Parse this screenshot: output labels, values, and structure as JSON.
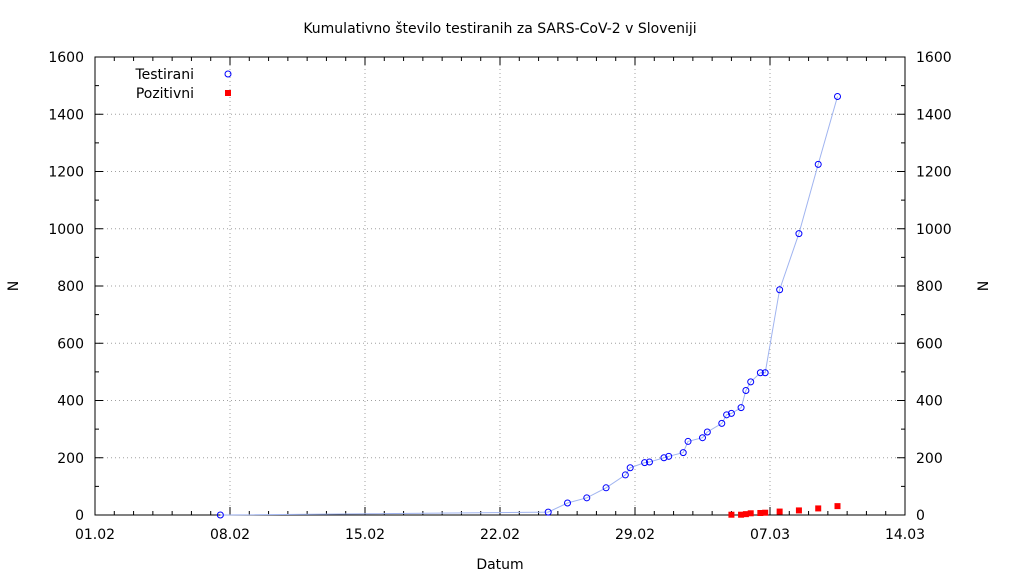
{
  "chart_data": {
    "type": "scatter",
    "title": "Kumulativno število testiranih za SARS-CoV-2 v Sloveniji",
    "xlabel": "Datum",
    "ylabel": "N",
    "y2label": "N",
    "xlim": [
      "2020-02-01",
      "2020-03-14"
    ],
    "ylim": [
      0,
      1600
    ],
    "x_ticks": [
      "01.02",
      "08.02",
      "15.02",
      "22.02",
      "29.02",
      "07.03",
      "14.03"
    ],
    "x_tick_dates": [
      "2020-02-01",
      "2020-02-08",
      "2020-02-15",
      "2020-02-22",
      "2020-02-29",
      "2020-03-07",
      "2020-03-14"
    ],
    "y_ticks": [
      0,
      200,
      400,
      600,
      800,
      1000,
      1200,
      1400,
      1600
    ],
    "grid": true,
    "legend_position": "top-left",
    "series": [
      {
        "name": "Testirani",
        "marker": "open-circle",
        "color": "#0000ff",
        "line_color": "#a0b4f0",
        "points": [
          {
            "x": "2020-02-07T12:00",
            "y": 0
          },
          {
            "x": "2020-02-24T12:00",
            "y": 10
          },
          {
            "x": "2020-02-25T12:00",
            "y": 42
          },
          {
            "x": "2020-02-26T12:00",
            "y": 60
          },
          {
            "x": "2020-02-27T12:00",
            "y": 95
          },
          {
            "x": "2020-02-28T12:00",
            "y": 140
          },
          {
            "x": "2020-02-28T18:00",
            "y": 165
          },
          {
            "x": "2020-02-29T12:00",
            "y": 183
          },
          {
            "x": "2020-02-29T18:00",
            "y": 185
          },
          {
            "x": "2020-03-01T12:00",
            "y": 200
          },
          {
            "x": "2020-03-01T18:00",
            "y": 205
          },
          {
            "x": "2020-03-02T12:00",
            "y": 218
          },
          {
            "x": "2020-03-02T18:00",
            "y": 257
          },
          {
            "x": "2020-03-03T12:00",
            "y": 270
          },
          {
            "x": "2020-03-03T18:00",
            "y": 290
          },
          {
            "x": "2020-03-04T12:00",
            "y": 320
          },
          {
            "x": "2020-03-04T18:00",
            "y": 350
          },
          {
            "x": "2020-03-05T00:00",
            "y": 355
          },
          {
            "x": "2020-03-05T12:00",
            "y": 375
          },
          {
            "x": "2020-03-05T18:00",
            "y": 435
          },
          {
            "x": "2020-03-06T00:00",
            "y": 465
          },
          {
            "x": "2020-03-06T12:00",
            "y": 497
          },
          {
            "x": "2020-03-06T18:00",
            "y": 497
          },
          {
            "x": "2020-03-07T12:00",
            "y": 787
          },
          {
            "x": "2020-03-08T12:00",
            "y": 983
          },
          {
            "x": "2020-03-09T12:00",
            "y": 1225
          },
          {
            "x": "2020-03-10T12:00",
            "y": 1462
          }
        ]
      },
      {
        "name": "Pozitivni",
        "marker": "filled-square",
        "color": "#ff0000",
        "points": [
          {
            "x": "2020-03-05T00:00",
            "y": 1
          },
          {
            "x": "2020-03-05T12:00",
            "y": 1
          },
          {
            "x": "2020-03-05T18:00",
            "y": 3
          },
          {
            "x": "2020-03-06T00:00",
            "y": 6
          },
          {
            "x": "2020-03-06T12:00",
            "y": 7
          },
          {
            "x": "2020-03-06T18:00",
            "y": 8
          },
          {
            "x": "2020-03-07T12:00",
            "y": 12
          },
          {
            "x": "2020-03-08T12:00",
            "y": 16
          },
          {
            "x": "2020-03-09T12:00",
            "y": 23
          },
          {
            "x": "2020-03-10T12:00",
            "y": 31
          }
        ]
      }
    ]
  }
}
